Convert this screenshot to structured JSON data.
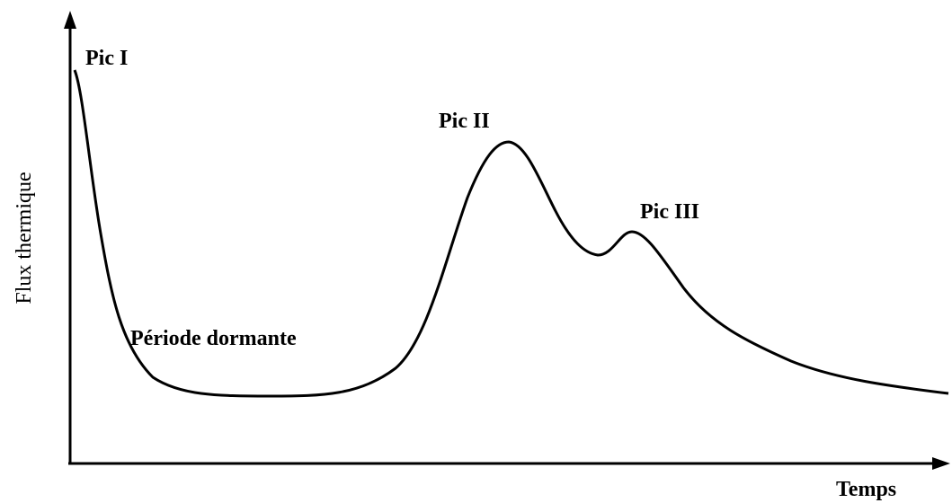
{
  "axes": {
    "y_label": "Flux thermique",
    "x_label": "Temps"
  },
  "annotations": [
    "Pic I",
    "Pic II",
    "Pic III",
    "Période dormante"
  ]
}
